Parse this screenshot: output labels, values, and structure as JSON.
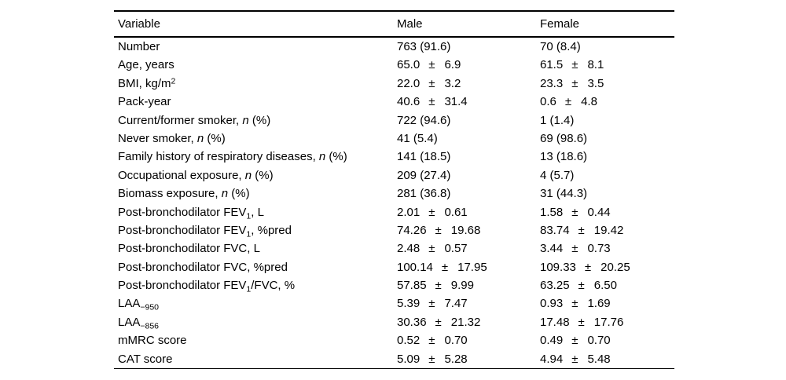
{
  "pm_symbol": "±",
  "table": {
    "columns": [
      "Variable",
      "Male",
      "Female"
    ],
    "rows": [
      {
        "variable": [
          {
            "text": "Number"
          }
        ],
        "male": {
          "text": "763 (91.6)"
        },
        "female": {
          "text": "70 (8.4)"
        }
      },
      {
        "variable": [
          {
            "text": "Age, years"
          }
        ],
        "male": {
          "mean": "65.0",
          "sd": "6.9"
        },
        "female": {
          "mean": "61.5",
          "sd": "8.1"
        }
      },
      {
        "variable": [
          {
            "text": "BMI, kg/m"
          },
          {
            "text": "2",
            "style": "sup"
          }
        ],
        "male": {
          "mean": "22.0",
          "sd": "3.2"
        },
        "female": {
          "mean": "23.3",
          "sd": "3.5"
        }
      },
      {
        "variable": [
          {
            "text": "Pack-year"
          }
        ],
        "male": {
          "mean": "40.6",
          "sd": "31.4"
        },
        "female": {
          "mean": "0.6",
          "sd": "4.8"
        }
      },
      {
        "variable": [
          {
            "text": "Current/former smoker, "
          },
          {
            "text": "n",
            "style": "italic"
          },
          {
            "text": " (%)"
          }
        ],
        "male": {
          "text": "722 (94.6)"
        },
        "female": {
          "text": "1 (1.4)"
        }
      },
      {
        "variable": [
          {
            "text": "Never smoker, "
          },
          {
            "text": "n",
            "style": "italic"
          },
          {
            "text": " (%)"
          }
        ],
        "male": {
          "text": "41 (5.4)"
        },
        "female": {
          "text": "69 (98.6)"
        }
      },
      {
        "variable": [
          {
            "text": "Family history of respiratory diseases, "
          },
          {
            "text": "n",
            "style": "italic"
          },
          {
            "text": " (%)"
          }
        ],
        "male": {
          "text": "141 (18.5)"
        },
        "female": {
          "text": "13 (18.6)"
        }
      },
      {
        "variable": [
          {
            "text": "Occupational exposure, "
          },
          {
            "text": "n",
            "style": "italic"
          },
          {
            "text": " (%)"
          }
        ],
        "male": {
          "text": "209 (27.4)"
        },
        "female": {
          "text": "4 (5.7)"
        }
      },
      {
        "variable": [
          {
            "text": "Biomass exposure, "
          },
          {
            "text": "n",
            "style": "italic"
          },
          {
            "text": " (%)"
          }
        ],
        "male": {
          "text": "281 (36.8)"
        },
        "female": {
          "text": "31 (44.3)"
        }
      },
      {
        "variable": [
          {
            "text": "Post-bronchodilator FEV"
          },
          {
            "text": "1",
            "style": "sub"
          },
          {
            "text": ", L"
          }
        ],
        "male": {
          "mean": "2.01",
          "sd": "0.61"
        },
        "female": {
          "mean": "1.58",
          "sd": "0.44"
        }
      },
      {
        "variable": [
          {
            "text": "Post-bronchodilator FEV"
          },
          {
            "text": "1",
            "style": "sub"
          },
          {
            "text": ", %pred"
          }
        ],
        "male": {
          "mean": "74.26",
          "sd": "19.68"
        },
        "female": {
          "mean": "83.74",
          "sd": "19.42"
        }
      },
      {
        "variable": [
          {
            "text": "Post-bronchodilator FVC, L"
          }
        ],
        "male": {
          "mean": "2.48",
          "sd": "0.57"
        },
        "female": {
          "mean": "3.44",
          "sd": "0.73"
        }
      },
      {
        "variable": [
          {
            "text": "Post-bronchodilator FVC, %pred"
          }
        ],
        "male": {
          "mean": "100.14",
          "sd": "17.95"
        },
        "female": {
          "mean": "109.33",
          "sd": "20.25"
        }
      },
      {
        "variable": [
          {
            "text": "Post-bronchodilator FEV"
          },
          {
            "text": "1",
            "style": "sub"
          },
          {
            "text": "/FVC, %"
          }
        ],
        "male": {
          "mean": "57.85",
          "sd": "9.99"
        },
        "female": {
          "mean": "63.25",
          "sd": "6.50"
        }
      },
      {
        "variable": [
          {
            "text": "LAA"
          },
          {
            "text": "−950",
            "style": "sub"
          }
        ],
        "male": {
          "mean": "5.39",
          "sd": "7.47"
        },
        "female": {
          "mean": "0.93",
          "sd": "1.69"
        }
      },
      {
        "variable": [
          {
            "text": "LAA"
          },
          {
            "text": "−856",
            "style": "sub"
          }
        ],
        "male": {
          "mean": "30.36",
          "sd": "21.32"
        },
        "female": {
          "mean": "17.48",
          "sd": "17.76"
        }
      },
      {
        "variable": [
          {
            "text": "mMRC score"
          }
        ],
        "male": {
          "mean": "0.52",
          "sd": "0.70"
        },
        "female": {
          "mean": "0.49",
          "sd": "0.70"
        }
      },
      {
        "variable": [
          {
            "text": "CAT score"
          }
        ],
        "male": {
          "mean": "5.09",
          "sd": "5.28"
        },
        "female": {
          "mean": "4.94",
          "sd": "5.48"
        }
      }
    ]
  }
}
